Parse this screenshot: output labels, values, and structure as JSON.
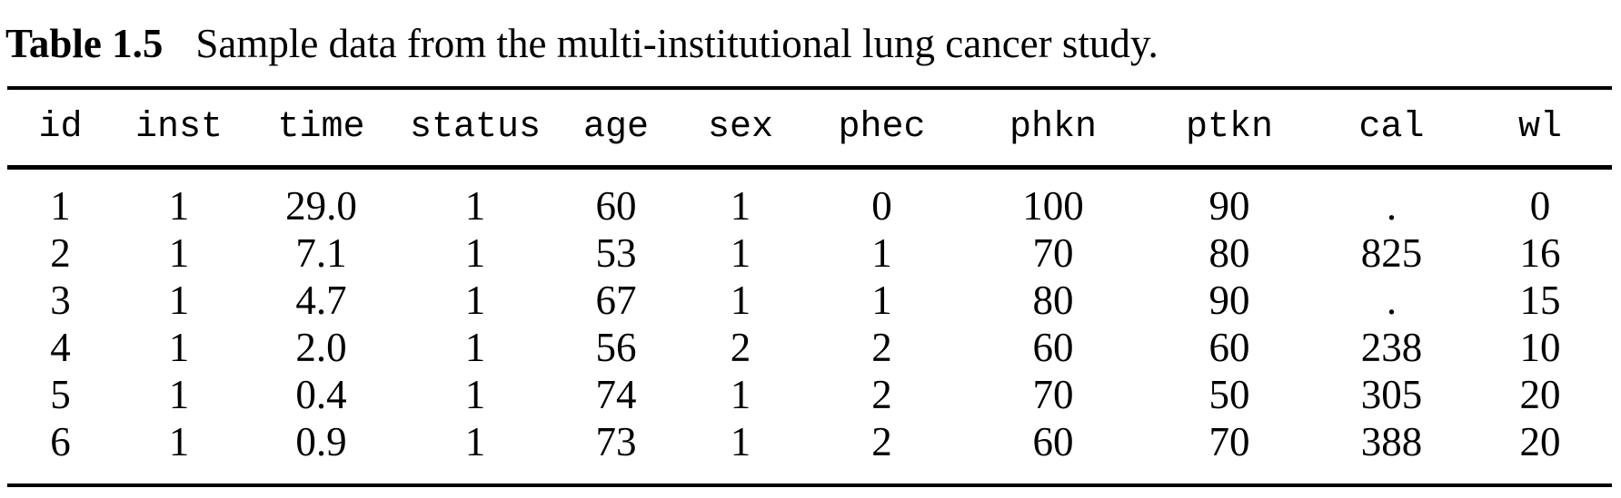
{
  "page": {
    "background_color": "#ffffff",
    "text_color": "#000000"
  },
  "caption": {
    "label": "Table 1.5",
    "text": "Sample data from the multi-institutional lung cancer study."
  },
  "table": {
    "columns": [
      "id",
      "inst",
      "time",
      "status",
      "age",
      "sex",
      "phec",
      "phkn",
      "ptkn",
      "cal",
      "wl"
    ],
    "rows": [
      [
        "1",
        "1",
        "29.0",
        "1",
        "60",
        "1",
        "0",
        "100",
        "90",
        ".",
        "0"
      ],
      [
        "2",
        "1",
        "7.1",
        "1",
        "53",
        "1",
        "1",
        "70",
        "80",
        "825",
        "16"
      ],
      [
        "3",
        "1",
        "4.7",
        "1",
        "67",
        "1",
        "1",
        "80",
        "90",
        ".",
        "15"
      ],
      [
        "4",
        "1",
        "2.0",
        "1",
        "56",
        "2",
        "2",
        "60",
        "60",
        "238",
        "10"
      ],
      [
        "5",
        "1",
        "0.4",
        "1",
        "74",
        "1",
        "2",
        "70",
        "50",
        "305",
        "20"
      ],
      [
        "6",
        "1",
        "0.9",
        "1",
        "73",
        "1",
        "2",
        "60",
        "70",
        "388",
        "20"
      ]
    ],
    "missing_value_symbol": "."
  }
}
